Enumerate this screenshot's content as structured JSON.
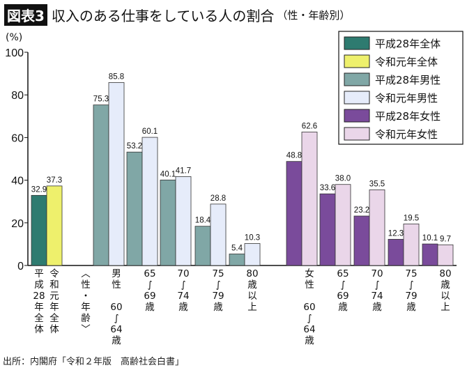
{
  "header": {
    "badge": "図表3",
    "title": "収入のある仕事をしている人の割合",
    "subtitle": "（性・年齢別）"
  },
  "source": "出所：内閣府「令和２年版　高齢社会白書」",
  "chart_data": {
    "type": "bar",
    "ylabel": "(%)",
    "ylim": [
      0,
      100
    ],
    "yticks": [
      0,
      20,
      40,
      60,
      80,
      100
    ],
    "grid": false,
    "legend_position": "top-right",
    "series": [
      {
        "name": "平成28年全体",
        "color": "#2e7b70",
        "values": [
          32.9
        ]
      },
      {
        "name": "令和元年全体",
        "color": "#eef06c",
        "values": [
          37.3
        ]
      },
      {
        "name": "平成28年男性",
        "color": "#80a7a6",
        "values": [
          75.3,
          53.2,
          40.1,
          18.4,
          5.4
        ]
      },
      {
        "name": "令和元年男性",
        "color": "#e6ecfa",
        "values": [
          85.8,
          60.1,
          41.7,
          28.8,
          10.3
        ]
      },
      {
        "name": "平成28年女性",
        "color": "#7a4b9b",
        "values": [
          48.8,
          33.6,
          23.2,
          12.3,
          10.1
        ]
      },
      {
        "name": "令和元年女性",
        "color": "#ead6e9",
        "values": [
          62.6,
          38.0,
          35.5,
          19.5,
          9.7
        ]
      }
    ],
    "x_labels": [
      [
        "平",
        "成",
        "28",
        "年",
        "全",
        "体"
      ],
      [
        "令",
        "和",
        "元",
        "年",
        "全",
        "体"
      ],
      [
        "︿",
        "性",
        "・",
        "年",
        "齢",
        "﹀"
      ],
      [
        "男",
        "性",
        "",
        "60",
        "∫",
        "64",
        "歳"
      ],
      [
        "65",
        "∫",
        "69",
        "歳"
      ],
      [
        "70",
        "∫",
        "74",
        "歳"
      ],
      [
        "75",
        "∫",
        "79",
        "歳"
      ],
      [
        "80",
        "歳",
        "以",
        "上"
      ],
      [
        "女",
        "性",
        "",
        "60",
        "∫",
        "64",
        "歳"
      ],
      [
        "65",
        "∫",
        "69",
        "歳"
      ],
      [
        "70",
        "∫",
        "74",
        "歳"
      ],
      [
        "75",
        "∫",
        "79",
        "歳"
      ],
      [
        "80",
        "歳",
        "以",
        "上"
      ]
    ]
  }
}
